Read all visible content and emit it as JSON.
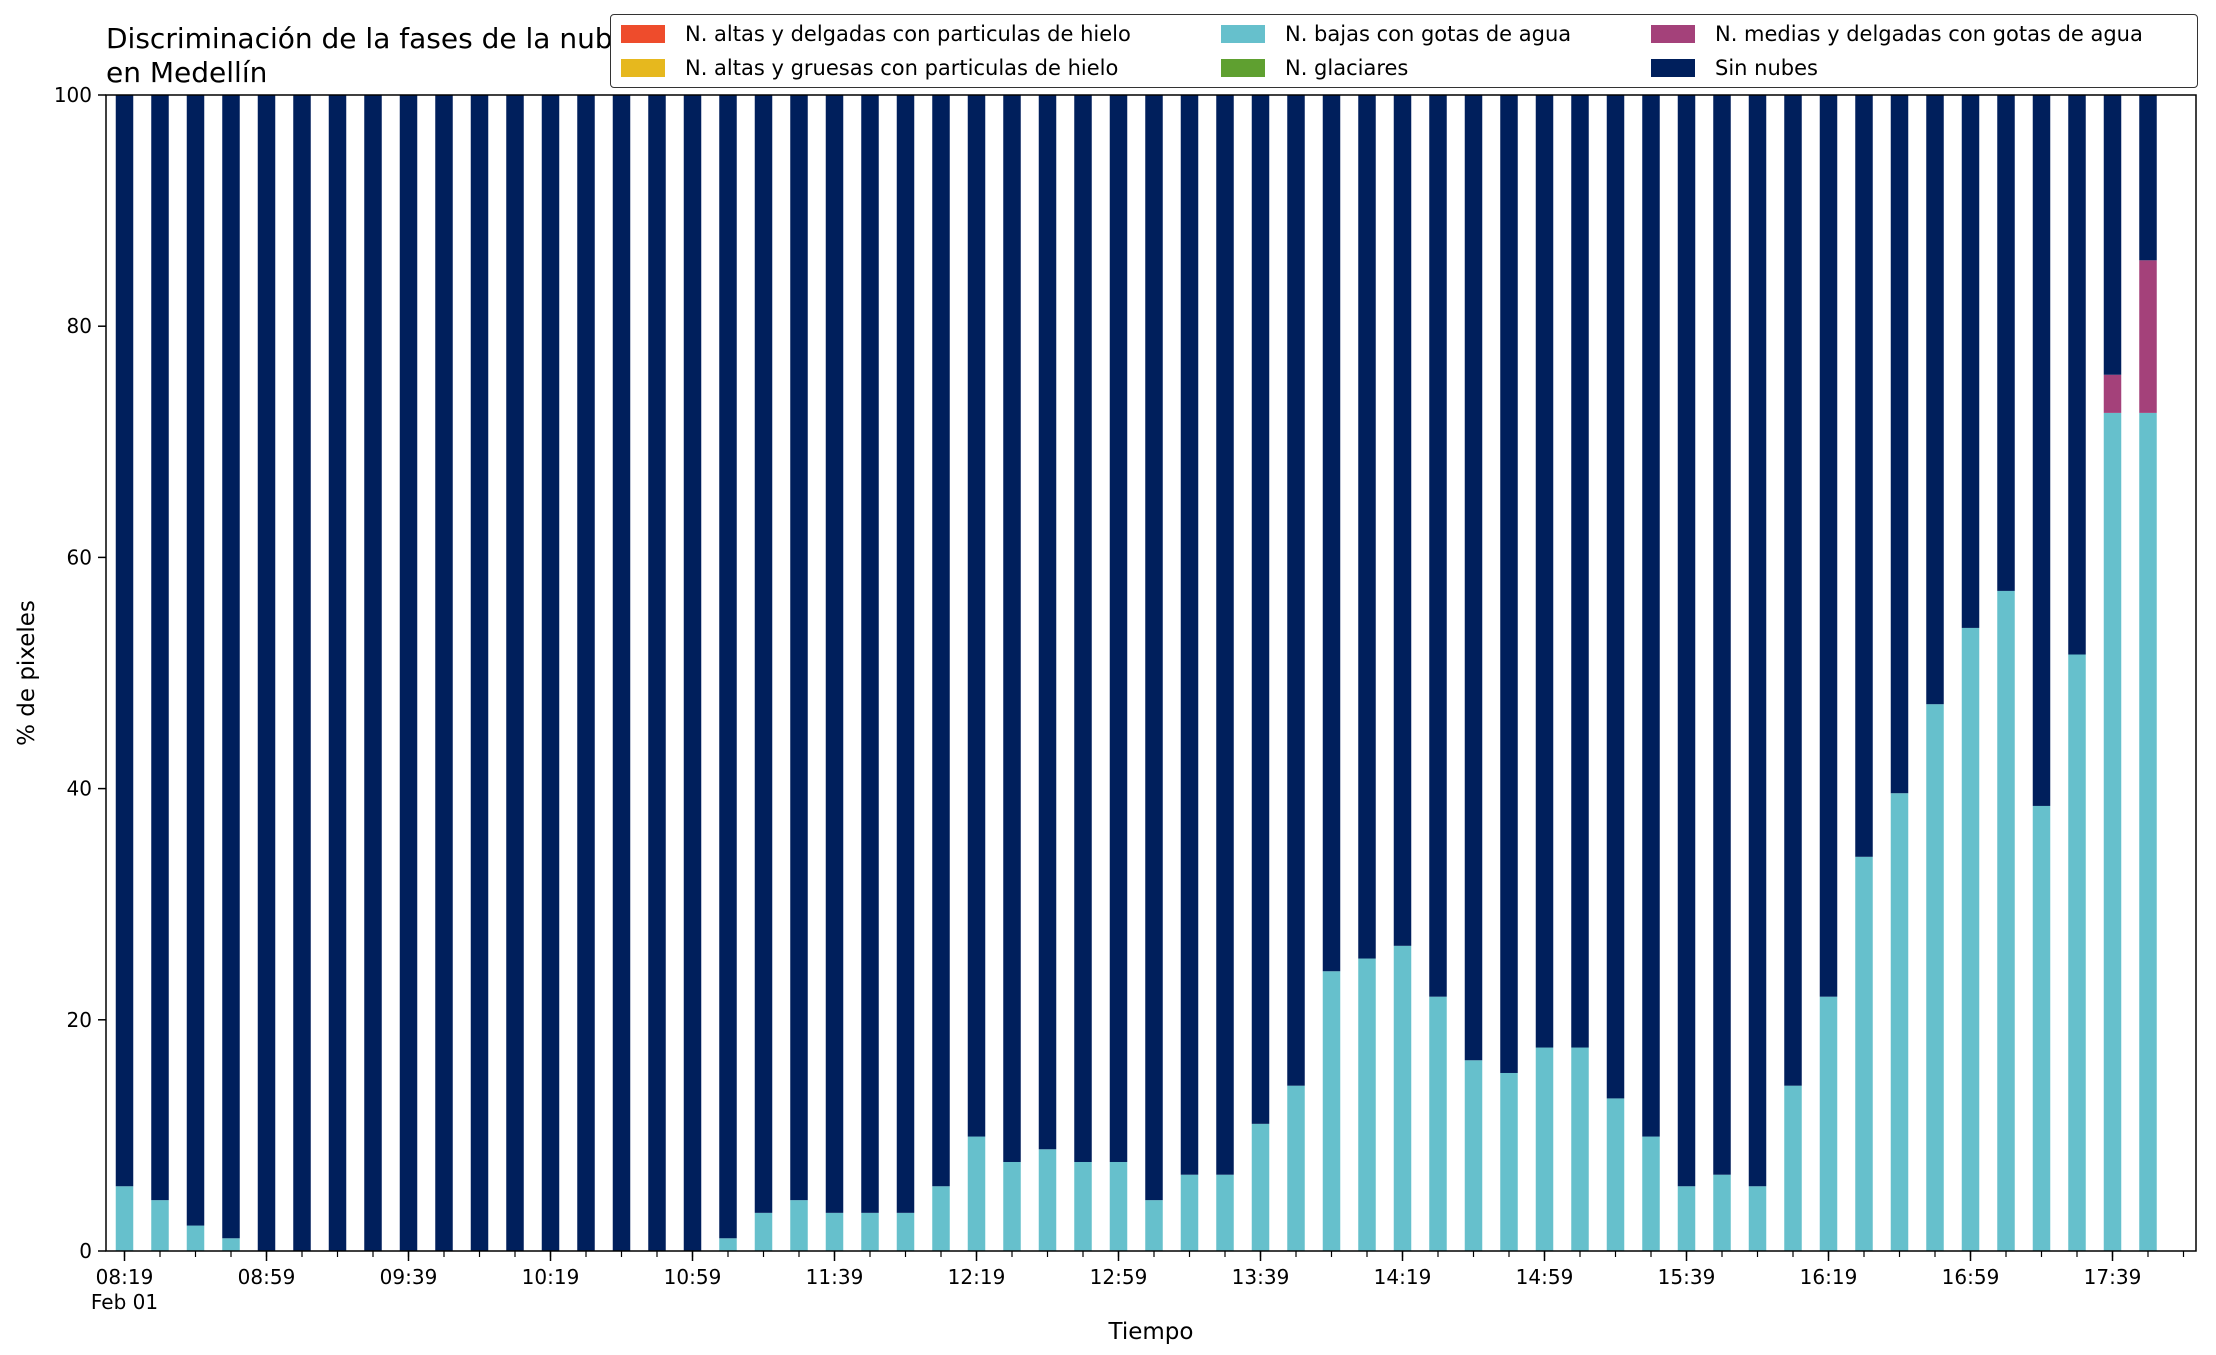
{
  "chart_data": {
    "type": "bar",
    "stacked": true,
    "title": "Discriminación de la fases de la nube en Medellín",
    "xlabel": "Tiempo",
    "ylabel": "% de pixeles",
    "ylim": [
      0,
      100
    ],
    "yticks": [
      0,
      20,
      40,
      60,
      80,
      100
    ],
    "grid": false,
    "legend_position": "top",
    "categories": [
      "08:19",
      "08:29",
      "08:39",
      "08:49",
      "08:59",
      "09:09",
      "09:19",
      "09:29",
      "09:39",
      "09:49",
      "09:59",
      "10:09",
      "10:19",
      "10:29",
      "10:39",
      "10:49",
      "10:59",
      "11:09",
      "11:19",
      "11:29",
      "11:39",
      "11:49",
      "11:59",
      "12:09",
      "12:19",
      "12:29",
      "12:39",
      "12:49",
      "12:59",
      "13:09",
      "13:19",
      "13:29",
      "13:39",
      "13:49",
      "13:59",
      "14:09",
      "14:19",
      "14:29",
      "14:39",
      "14:49",
      "14:59",
      "15:09",
      "15:19",
      "15:29",
      "15:39",
      "15:49",
      "15:59",
      "16:09",
      "16:19",
      "16:29",
      "16:39",
      "16:49",
      "16:59",
      "17:09",
      "17:19",
      "17:29",
      "17:39",
      "17:49"
    ],
    "tick_labels": [
      {
        "index": 0,
        "label": "08:19",
        "sublabel": "Feb 01"
      },
      {
        "index": 4,
        "label": "08:59"
      },
      {
        "index": 8,
        "label": "09:39"
      },
      {
        "index": 12,
        "label": "10:19"
      },
      {
        "index": 16,
        "label": "10:59"
      },
      {
        "index": 20,
        "label": "11:39"
      },
      {
        "index": 24,
        "label": "12:19"
      },
      {
        "index": 28,
        "label": "12:59"
      },
      {
        "index": 32,
        "label": "13:39"
      },
      {
        "index": 36,
        "label": "14:19"
      },
      {
        "index": 40,
        "label": "14:59"
      },
      {
        "index": 44,
        "label": "15:39"
      },
      {
        "index": 48,
        "label": "16:19"
      },
      {
        "index": 52,
        "label": "16:59"
      },
      {
        "index": 56,
        "label": "17:39"
      }
    ],
    "series": [
      {
        "name": "N. altas y delgadas con particulas de hielo",
        "color": "#ee4c2c",
        "values": [
          0,
          0,
          0,
          0,
          0,
          0,
          0,
          0,
          0,
          0,
          0,
          0,
          0,
          0,
          0,
          0,
          0,
          0,
          0,
          0,
          0,
          0,
          0,
          0,
          0,
          0,
          0,
          0,
          0,
          0,
          0,
          0,
          0,
          0,
          0,
          0,
          0,
          0,
          0,
          0,
          0,
          0,
          0,
          0,
          0,
          0,
          0,
          0,
          0,
          0,
          0,
          0,
          0,
          0,
          0,
          0,
          0,
          0
        ]
      },
      {
        "name": "N. altas y gruesas con particulas de hielo",
        "color": "#e6b81e",
        "values": [
          0,
          0,
          0,
          0,
          0,
          0,
          0,
          0,
          0,
          0,
          0,
          0,
          0,
          0,
          0,
          0,
          0,
          0,
          0,
          0,
          0,
          0,
          0,
          0,
          0,
          0,
          0,
          0,
          0,
          0,
          0,
          0,
          0,
          0,
          0,
          0,
          0,
          0,
          0,
          0,
          0,
          0,
          0,
          0,
          0,
          0,
          0,
          0,
          0,
          0,
          0,
          0,
          0,
          0,
          0,
          0,
          0,
          0
        ]
      },
      {
        "name": "N. bajas con gotas de agua",
        "color": "#66c0cc",
        "values": [
          5.6,
          4.4,
          2.2,
          1.1,
          0,
          0,
          0,
          0,
          0,
          0,
          0,
          0,
          0,
          0,
          0,
          0,
          0,
          1.1,
          3.3,
          4.4,
          3.3,
          3.3,
          3.3,
          5.6,
          9.9,
          7.7,
          8.8,
          7.7,
          7.7,
          4.4,
          6.6,
          6.6,
          11.0,
          14.3,
          24.2,
          25.3,
          26.4,
          22.0,
          16.5,
          15.4,
          17.6,
          17.6,
          13.2,
          9.9,
          5.6,
          6.6,
          5.6,
          14.3,
          22.0,
          34.1,
          39.6,
          47.3,
          53.9,
          57.1,
          38.5,
          51.6,
          72.5,
          72.5
        ]
      },
      {
        "name": "N. glaciares",
        "color": "#5fa030",
        "values": [
          0,
          0,
          0,
          0,
          0,
          0,
          0,
          0,
          0,
          0,
          0,
          0,
          0,
          0,
          0,
          0,
          0,
          0,
          0,
          0,
          0,
          0,
          0,
          0,
          0,
          0,
          0,
          0,
          0,
          0,
          0,
          0,
          0,
          0,
          0,
          0,
          0,
          0,
          0,
          0,
          0,
          0,
          0,
          0,
          0,
          0,
          0,
          0,
          0,
          0,
          0,
          0,
          0,
          0,
          0,
          0,
          0,
          0
        ]
      },
      {
        "name": "N. medias y delgadas con gotas de agua",
        "color": "#a4417a",
        "values": [
          0,
          0,
          0,
          0,
          0,
          0,
          0,
          0,
          0,
          0,
          0,
          0,
          0,
          0,
          0,
          0,
          0,
          0,
          0,
          0,
          0,
          0,
          0,
          0,
          0,
          0,
          0,
          0,
          0,
          0,
          0,
          0,
          0,
          0,
          0,
          0,
          0,
          0,
          0,
          0,
          0,
          0,
          0,
          0,
          0,
          0,
          0,
          0,
          0,
          0,
          0,
          0,
          0,
          0,
          0,
          0,
          3.3,
          13.2
        ]
      },
      {
        "name": "Sin nubes",
        "color": "#001f5c",
        "values": [
          94.4,
          95.6,
          97.8,
          98.9,
          100,
          100,
          100,
          100,
          100,
          100,
          100,
          100,
          100,
          100,
          100,
          100,
          100,
          98.9,
          96.7,
          95.6,
          96.7,
          96.7,
          96.7,
          94.4,
          90.1,
          92.3,
          91.2,
          92.3,
          92.3,
          95.6,
          93.4,
          93.4,
          89.0,
          85.7,
          75.8,
          74.7,
          73.6,
          78.0,
          83.5,
          84.6,
          82.4,
          82.4,
          86.8,
          90.1,
          94.4,
          93.4,
          94.4,
          85.7,
          78.0,
          65.9,
          60.4,
          52.7,
          46.1,
          42.9,
          61.5,
          48.4,
          24.2,
          14.3
        ]
      }
    ]
  }
}
